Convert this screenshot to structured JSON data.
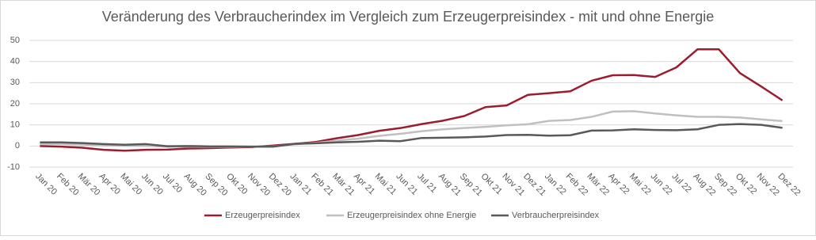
{
  "chart_data": {
    "type": "line",
    "title": "Veränderung des Verbraucherindex im Vergleich zum Erzeugerpreisindex - mit und ohne Energie",
    "categories": [
      "Jan 20",
      "Feb 20",
      "Mär 20",
      "Apr 20",
      "Mai 20",
      "Jun 20",
      "Jul 20",
      "Aug 20",
      "Sep 20",
      "Okt 20",
      "Nov 20",
      "Dez 20",
      "Jan 21",
      "Feb 21",
      "Mär 21",
      "Apr 21",
      "Mai 21",
      "Jun 21",
      "Jul 21",
      "Aug 21",
      "Sep 21",
      "Okt 21",
      "Nov 21",
      "Dez 21",
      "Jan 22",
      "Feb 22",
      "Mär 22",
      "Apr 22",
      "Mai 22",
      "Jun 22",
      "Jul 22",
      "Aug 22",
      "Sep 22",
      "Okt 22",
      "Nov 22",
      "Dez 22"
    ],
    "series": [
      {
        "name": "Erzeugerpreisindex",
        "color": "#9b1c2e",
        "values": [
          0,
          -0.3,
          -0.8,
          -1.8,
          -2.2,
          -1.8,
          -1.7,
          -1.2,
          -1.0,
          -0.7,
          -0.5,
          0.2,
          1.0,
          1.9,
          3.7,
          5.2,
          7.2,
          8.5,
          10.4,
          12.0,
          14.2,
          18.4,
          19.2,
          24.2,
          25.0,
          25.9,
          30.9,
          33.5,
          33.6,
          32.7,
          37.2,
          45.8,
          45.8,
          34.5,
          28.2,
          21.6
        ]
      },
      {
        "name": "Erzeugerpreisindex ohne Energie",
        "color": "#c0c0c0",
        "values": [
          1.0,
          0.9,
          0.7,
          0.3,
          0.1,
          0.1,
          -0.3,
          -0.3,
          -0.4,
          -0.4,
          -0.3,
          -0.2,
          0.8,
          1.5,
          2.5,
          3.5,
          4.8,
          5.8,
          7.0,
          7.9,
          8.5,
          9.1,
          9.8,
          10.3,
          11.9,
          12.3,
          13.8,
          16.3,
          16.5,
          15.4,
          14.5,
          13.8,
          13.8,
          13.5,
          12.6,
          11.8
        ]
      },
      {
        "name": "Verbraucherpreisindex",
        "color": "#595959",
        "values": [
          1.7,
          1.7,
          1.4,
          0.9,
          0.6,
          0.9,
          -0.1,
          0.0,
          -0.2,
          -0.2,
          -0.3,
          -0.3,
          1.0,
          1.3,
          1.7,
          2.0,
          2.5,
          2.3,
          3.8,
          3.9,
          4.1,
          4.5,
          5.2,
          5.3,
          4.9,
          5.1,
          7.3,
          7.4,
          7.9,
          7.6,
          7.5,
          7.9,
          10.0,
          10.4,
          10.0,
          8.6
        ]
      }
    ],
    "ylim": [
      -10,
      50
    ],
    "yticks": [
      -10,
      0,
      10,
      20,
      30,
      40,
      50
    ],
    "grid": true,
    "legend": "bottom"
  }
}
